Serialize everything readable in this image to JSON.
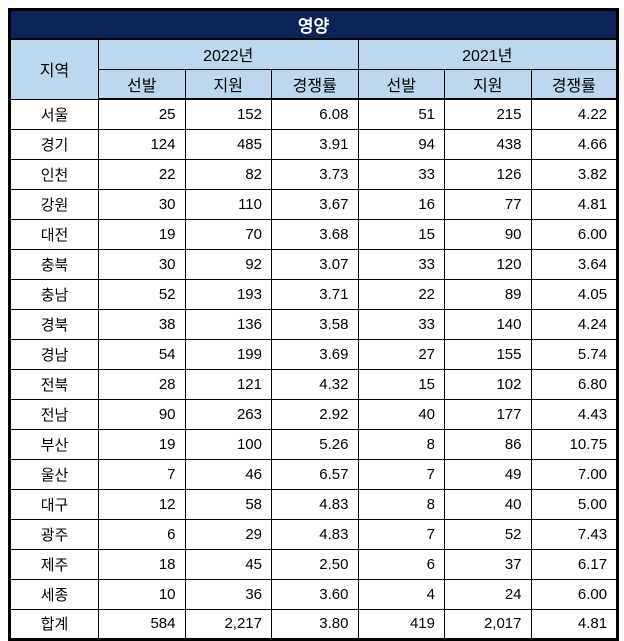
{
  "title": "영양",
  "colors": {
    "title_bg": "#0D2257",
    "title_text": "#FFFFFF",
    "header_bg": "#BDD7EE",
    "border": "#000000"
  },
  "header": {
    "region": "지역",
    "year_groups": [
      "2022년",
      "2021년"
    ],
    "sub_columns": [
      "선발",
      "지원",
      "경쟁률"
    ]
  },
  "rows": [
    {
      "region": "서울",
      "values": [
        "25",
        "152",
        "6.08",
        "51",
        "215",
        "4.22"
      ]
    },
    {
      "region": "경기",
      "values": [
        "124",
        "485",
        "3.91",
        "94",
        "438",
        "4.66"
      ]
    },
    {
      "region": "인천",
      "values": [
        "22",
        "82",
        "3.73",
        "33",
        "126",
        "3.82"
      ]
    },
    {
      "region": "강원",
      "values": [
        "30",
        "110",
        "3.67",
        "16",
        "77",
        "4.81"
      ]
    },
    {
      "region": "대전",
      "values": [
        "19",
        "70",
        "3.68",
        "15",
        "90",
        "6.00"
      ]
    },
    {
      "region": "충북",
      "values": [
        "30",
        "92",
        "3.07",
        "33",
        "120",
        "3.64"
      ]
    },
    {
      "region": "충남",
      "values": [
        "52",
        "193",
        "3.71",
        "22",
        "89",
        "4.05"
      ]
    },
    {
      "region": "경북",
      "values": [
        "38",
        "136",
        "3.58",
        "33",
        "140",
        "4.24"
      ]
    },
    {
      "region": "경남",
      "values": [
        "54",
        "199",
        "3.69",
        "27",
        "155",
        "5.74"
      ]
    },
    {
      "region": "전북",
      "values": [
        "28",
        "121",
        "4.32",
        "15",
        "102",
        "6.80"
      ]
    },
    {
      "region": "전남",
      "values": [
        "90",
        "263",
        "2.92",
        "40",
        "177",
        "4.43"
      ]
    },
    {
      "region": "부산",
      "values": [
        "19",
        "100",
        "5.26",
        "8",
        "86",
        "10.75"
      ]
    },
    {
      "region": "울산",
      "values": [
        "7",
        "46",
        "6.57",
        "7",
        "49",
        "7.00"
      ]
    },
    {
      "region": "대구",
      "values": [
        "12",
        "58",
        "4.83",
        "8",
        "40",
        "5.00"
      ]
    },
    {
      "region": "광주",
      "values": [
        "6",
        "29",
        "4.83",
        "7",
        "52",
        "7.43"
      ]
    },
    {
      "region": "제주",
      "values": [
        "18",
        "45",
        "2.50",
        "6",
        "37",
        "6.17"
      ]
    },
    {
      "region": "세종",
      "values": [
        "10",
        "36",
        "3.60",
        "4",
        "24",
        "6.00"
      ]
    },
    {
      "region": "합계",
      "values": [
        "584",
        "2,217",
        "3.80",
        "419",
        "2,017",
        "4.81"
      ]
    }
  ]
}
